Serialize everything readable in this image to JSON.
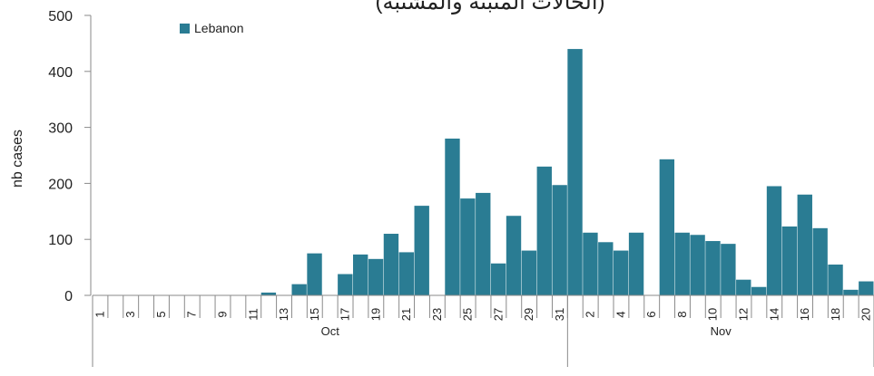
{
  "colors": {
    "bar": "#2a7c93",
    "axis": "#8a8a8a",
    "text": "#222222"
  },
  "chart_data": {
    "type": "bar",
    "title": "(الحالات المثبتة والمشتبه)",
    "ylabel": "nb cases",
    "xlabel": "",
    "ylim": [
      0,
      500
    ],
    "yticks": [
      0,
      100,
      200,
      300,
      400,
      500
    ],
    "legend": {
      "position": "top-left",
      "entries": [
        "Lebanon"
      ]
    },
    "grid": false,
    "series": [
      {
        "name": "Lebanon",
        "values": [
          0,
          0,
          0,
          0,
          0,
          0,
          0,
          0,
          0,
          0,
          0,
          5,
          0,
          20,
          75,
          0,
          38,
          73,
          65,
          110,
          77,
          160,
          0,
          280,
          173,
          183,
          57,
          142,
          80,
          230,
          197,
          440,
          112,
          95,
          80,
          112,
          0,
          243,
          112,
          108,
          97,
          92,
          28,
          15,
          195,
          123,
          180,
          120,
          55,
          10,
          25
        ]
      }
    ],
    "tick_labels": [
      "1",
      "3",
      "5",
      "7",
      "9",
      "11",
      "13",
      "15",
      "17",
      "19",
      "21",
      "23",
      "25",
      "27",
      "29",
      "31",
      "2",
      "4",
      "6",
      "8",
      "10",
      "12",
      "14",
      "16",
      "18",
      "20"
    ],
    "month_groups": [
      {
        "label": "Oct",
        "start": 0,
        "end": 30
      },
      {
        "label": "Nov",
        "start": 31,
        "end": 50
      }
    ]
  }
}
